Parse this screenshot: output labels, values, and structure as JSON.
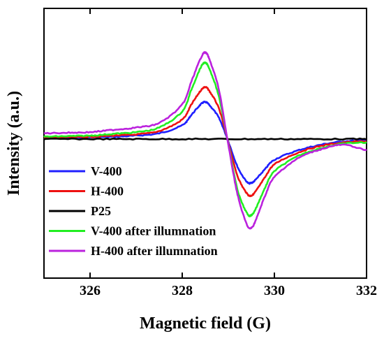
{
  "chart_data": {
    "type": "line",
    "title": "",
    "xlabel": "Magnetic field (G)",
    "ylabel": "Intensity (a.u.)",
    "xlim": [
      325,
      332
    ],
    "ylim": [
      -1.0,
      1.0
    ],
    "xticks": [
      326,
      328,
      330,
      332
    ],
    "show_yticks": false,
    "grid": false,
    "legend_position": "lower-left",
    "series": [
      {
        "name": "V-400",
        "color": "#1f1fff",
        "x": [
          325.0,
          325.5,
          326.0,
          326.5,
          327.0,
          327.5,
          328.0,
          328.2,
          328.4,
          328.5,
          328.6,
          328.8,
          329.0,
          329.2,
          329.4,
          329.5,
          329.6,
          329.8,
          330.0,
          330.5,
          331.0,
          331.5,
          332.0
        ],
        "y": [
          0.01,
          0.01,
          0.015,
          0.02,
          0.03,
          0.05,
          0.12,
          0.21,
          0.3,
          0.32,
          0.29,
          0.18,
          -0.02,
          -0.24,
          -0.37,
          -0.38,
          -0.35,
          -0.26,
          -0.18,
          -0.1,
          -0.05,
          -0.02,
          -0.01
        ]
      },
      {
        "name": "H-400",
        "color": "#ee1111",
        "x": [
          325.0,
          325.5,
          326.0,
          326.5,
          327.0,
          327.5,
          328.0,
          328.2,
          328.4,
          328.5,
          328.6,
          328.8,
          329.0,
          329.2,
          329.4,
          329.5,
          329.6,
          329.8,
          330.0,
          330.5,
          331.0,
          331.5,
          332.0
        ],
        "y": [
          0.015,
          0.015,
          0.02,
          0.03,
          0.04,
          0.07,
          0.17,
          0.3,
          0.42,
          0.45,
          0.41,
          0.26,
          -0.03,
          -0.32,
          -0.47,
          -0.49,
          -0.45,
          -0.33,
          -0.22,
          -0.12,
          -0.06,
          -0.03,
          -0.02
        ]
      },
      {
        "name": "P25",
        "color": "#000000",
        "x": [
          325.0,
          326.0,
          327.0,
          328.0,
          329.0,
          330.0,
          331.0,
          332.0
        ],
        "y": [
          0.0,
          0.0,
          0.0,
          0.0,
          0.0,
          0.0,
          0.0,
          0.0
        ]
      },
      {
        "name": "V-400 after illumnation",
        "color": "#22ee22",
        "x": [
          325.0,
          325.5,
          326.0,
          326.5,
          327.0,
          327.5,
          328.0,
          328.2,
          328.4,
          328.5,
          328.6,
          328.8,
          329.0,
          329.2,
          329.4,
          329.5,
          329.6,
          329.8,
          330.0,
          330.5,
          331.0,
          331.5,
          332.0
        ],
        "y": [
          0.02,
          0.025,
          0.03,
          0.045,
          0.06,
          0.1,
          0.24,
          0.43,
          0.62,
          0.66,
          0.6,
          0.36,
          -0.04,
          -0.44,
          -0.64,
          -0.66,
          -0.6,
          -0.42,
          -0.28,
          -0.15,
          -0.08,
          -0.04,
          -0.03
        ]
      },
      {
        "name": "H-400 after illumnation",
        "color": "#bb22dd",
        "x": [
          325.0,
          325.5,
          326.0,
          326.5,
          327.0,
          327.5,
          328.0,
          328.2,
          328.4,
          328.5,
          328.6,
          328.8,
          329.0,
          329.2,
          329.4,
          329.5,
          329.6,
          329.8,
          330.0,
          330.5,
          331.0,
          331.5,
          332.0
        ],
        "y": [
          0.05,
          0.055,
          0.06,
          0.08,
          0.1,
          0.14,
          0.3,
          0.5,
          0.7,
          0.75,
          0.68,
          0.42,
          -0.05,
          -0.48,
          -0.74,
          -0.77,
          -0.7,
          -0.49,
          -0.33,
          -0.17,
          -0.09,
          -0.05,
          -0.1
        ]
      }
    ]
  }
}
